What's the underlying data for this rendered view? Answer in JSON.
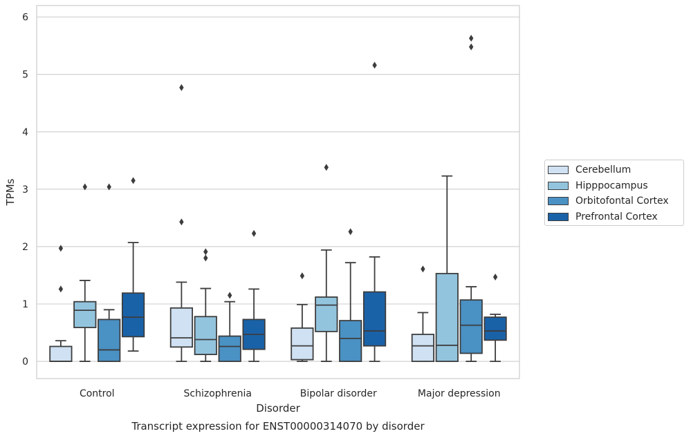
{
  "chart_data": {
    "type": "boxplot",
    "title": "Transcript expression for ENST00000314070 by disorder",
    "xlabel": "Disorder",
    "ylabel": "TPMs",
    "ylim": [
      -0.3,
      6.2
    ],
    "yticks": [
      0,
      1,
      2,
      3,
      4,
      5,
      6
    ],
    "grid": true,
    "legend_position": "right",
    "categories": [
      "Control",
      "Schizophrenia",
      "Bipolar disorder",
      "Major depression"
    ],
    "series": [
      {
        "name": "Cerebellum",
        "color": "#cfe1f2",
        "boxes": [
          {
            "whislo": 0,
            "q1": 0,
            "med": 0,
            "q3": 0.26,
            "whishi": 0.36,
            "fliers": [
              1.26,
              1.97
            ]
          },
          {
            "whislo": 0,
            "q1": 0.25,
            "med": 0.41,
            "q3": 0.93,
            "whishi": 1.38,
            "fliers": [
              2.43,
              4.77
            ]
          },
          {
            "whislo": 0,
            "q1": 0.03,
            "med": 0.27,
            "q3": 0.58,
            "whishi": 0.99,
            "fliers": [
              1.49
            ]
          },
          {
            "whislo": 0,
            "q1": 0,
            "med": 0.27,
            "q3": 0.47,
            "whishi": 0.85,
            "fliers": [
              1.61
            ]
          }
        ]
      },
      {
        "name": "Hipppocampus",
        "color": "#93c4de",
        "boxes": [
          {
            "whislo": 0,
            "q1": 0.59,
            "med": 0.89,
            "q3": 1.04,
            "whishi": 1.41,
            "fliers": [
              3.04
            ]
          },
          {
            "whislo": 0,
            "q1": 0.12,
            "med": 0.38,
            "q3": 0.78,
            "whishi": 1.27,
            "fliers": [
              1.8,
              1.91
            ]
          },
          {
            "whislo": 0,
            "q1": 0.52,
            "med": 0.98,
            "q3": 1.12,
            "whishi": 1.94,
            "fliers": [
              3.38
            ]
          },
          {
            "whislo": 0,
            "q1": 0,
            "med": 0.28,
            "q3": 1.53,
            "whishi": 3.23,
            "fliers": []
          }
        ]
      },
      {
        "name": "Orbitofontal Cortex",
        "color": "#4a91c4",
        "boxes": [
          {
            "whislo": 0,
            "q1": 0,
            "med": 0.2,
            "q3": 0.73,
            "whishi": 0.9,
            "fliers": [
              3.04
            ]
          },
          {
            "whislo": 0,
            "q1": 0,
            "med": 0.26,
            "q3": 0.44,
            "whishi": 1.04,
            "fliers": [
              1.15
            ]
          },
          {
            "whislo": 0,
            "q1": 0,
            "med": 0.4,
            "q3": 0.71,
            "whishi": 1.72,
            "fliers": [
              2.26
            ]
          },
          {
            "whislo": 0,
            "q1": 0.14,
            "med": 0.63,
            "q3": 1.07,
            "whishi": 1.3,
            "fliers": [
              5.48,
              5.63
            ]
          }
        ]
      },
      {
        "name": "Prefrontal Cortex",
        "color": "#1a62a8",
        "boxes": [
          {
            "whislo": 0.18,
            "q1": 0.43,
            "med": 0.77,
            "q3": 1.19,
            "whishi": 2.07,
            "fliers": [
              3.15
            ]
          },
          {
            "whislo": 0,
            "q1": 0.21,
            "med": 0.47,
            "q3": 0.73,
            "whishi": 1.26,
            "fliers": [
              2.23
            ]
          },
          {
            "whislo": 0,
            "q1": 0.27,
            "med": 0.53,
            "q3": 1.21,
            "whishi": 1.82,
            "fliers": [
              5.16
            ]
          },
          {
            "whislo": 0,
            "q1": 0.37,
            "med": 0.53,
            "q3": 0.77,
            "whishi": 0.82,
            "fliers": [
              1.47
            ]
          }
        ]
      }
    ]
  }
}
